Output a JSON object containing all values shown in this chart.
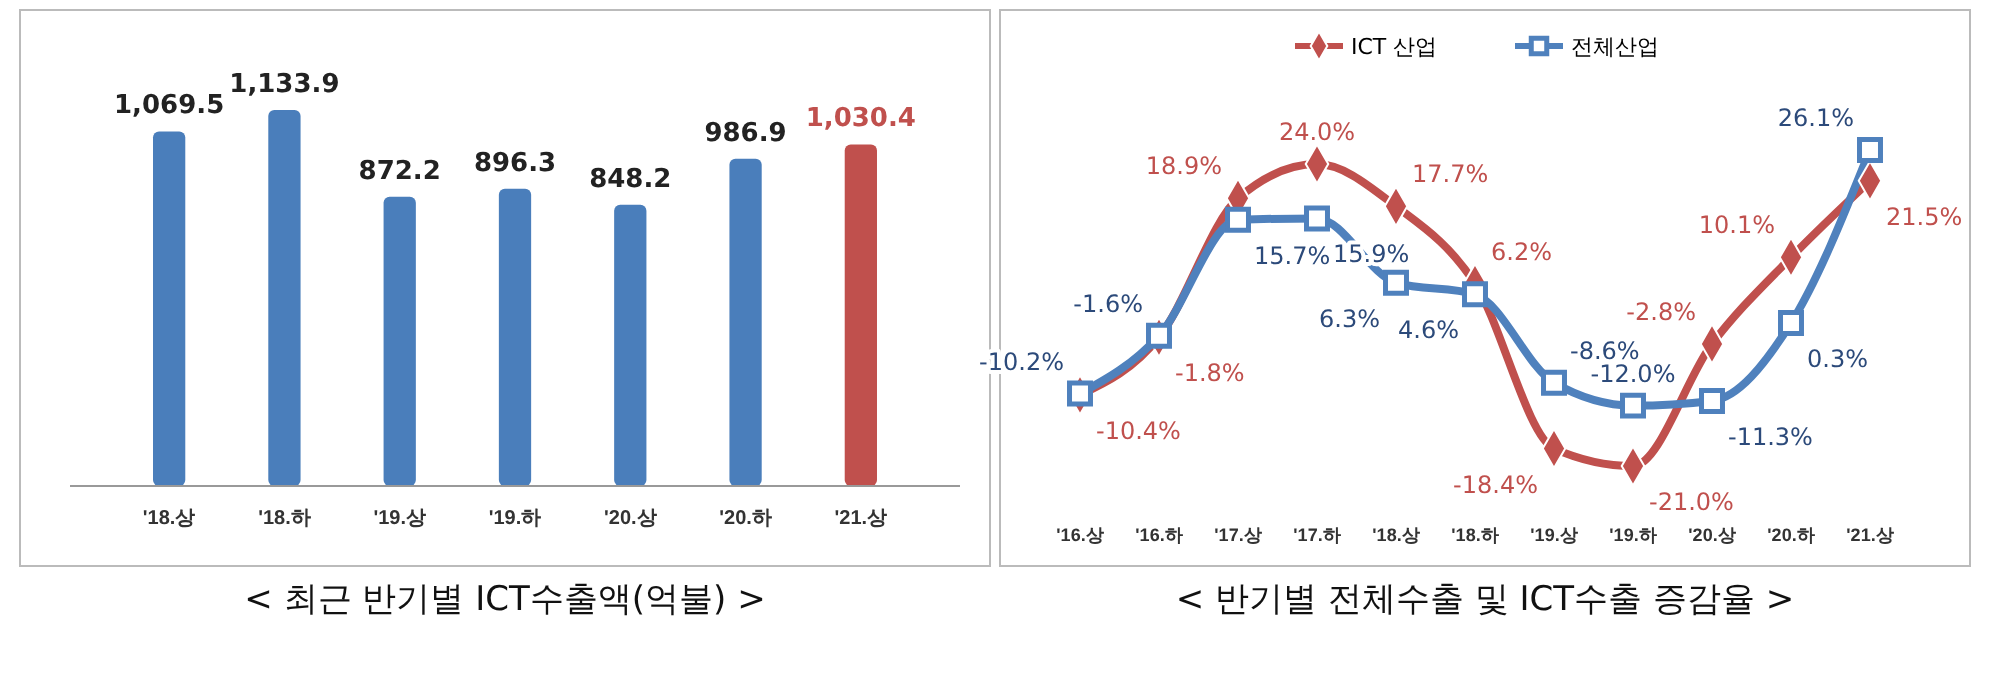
{
  "chart_data": [
    {
      "type": "bar",
      "categories": [
        "'18.상",
        "'18.하",
        "'19.상",
        "'19.하",
        "'20.상",
        "'20.하",
        "'21.상"
      ],
      "values": [
        1069.5,
        1133.9,
        872.2,
        896.3,
        848.2,
        986.9,
        1030.4
      ],
      "colors": [
        "#4a7ebb",
        "#4a7ebb",
        "#4a7ebb",
        "#4a7ebb",
        "#4a7ebb",
        "#4a7ebb",
        "#c0504d"
      ],
      "value_labels": [
        "1,069.5",
        "1,133.9",
        "872.2",
        "896.3",
        "848.2",
        "986.9",
        "1,030.4"
      ],
      "annotations": [
        "< 최근 반기별 ICT수출액(억불) >"
      ]
    },
    {
      "type": "line",
      "categories": [
        "'16.상",
        "'16.하",
        "'17.상",
        "'17.하",
        "'18.상",
        "'18.하",
        "'19.상",
        "'19.하",
        "'20.상",
        "'20.하",
        "'21.상"
      ],
      "series": [
        {
          "name": "ICT 산업",
          "color": "#c0504d",
          "marker": "diamond",
          "values": [
            -10.4,
            -1.8,
            18.9,
            24.0,
            17.7,
            6.2,
            -18.4,
            -21.0,
            -2.8,
            10.1,
            21.5
          ],
          "value_labels": [
            "-10.4%",
            "-1.8%",
            "18.9%",
            "24.0%",
            "17.7%",
            "6.2%",
            "-18.4%",
            "-21.0%",
            "-2.8%",
            "10.1%",
            "21.5%"
          ]
        },
        {
          "name": "전체산업",
          "color": "#4f81bd",
          "marker": "square",
          "values": [
            -10.2,
            -1.6,
            15.7,
            15.9,
            6.3,
            4.6,
            -8.6,
            -12.0,
            -11.3,
            0.3,
            26.1
          ],
          "value_labels": [
            "-10.2%",
            "-1.6%",
            "15.7%",
            "15.9%",
            "6.3%",
            "4.6%",
            "-8.6%",
            "-12.0%",
            "-11.3%",
            "0.3%",
            "26.1%"
          ]
        }
      ],
      "legend": "top",
      "annotations": [
        "< 반기별 전체수출 및 ICT수출 증감율 >"
      ]
    }
  ]
}
